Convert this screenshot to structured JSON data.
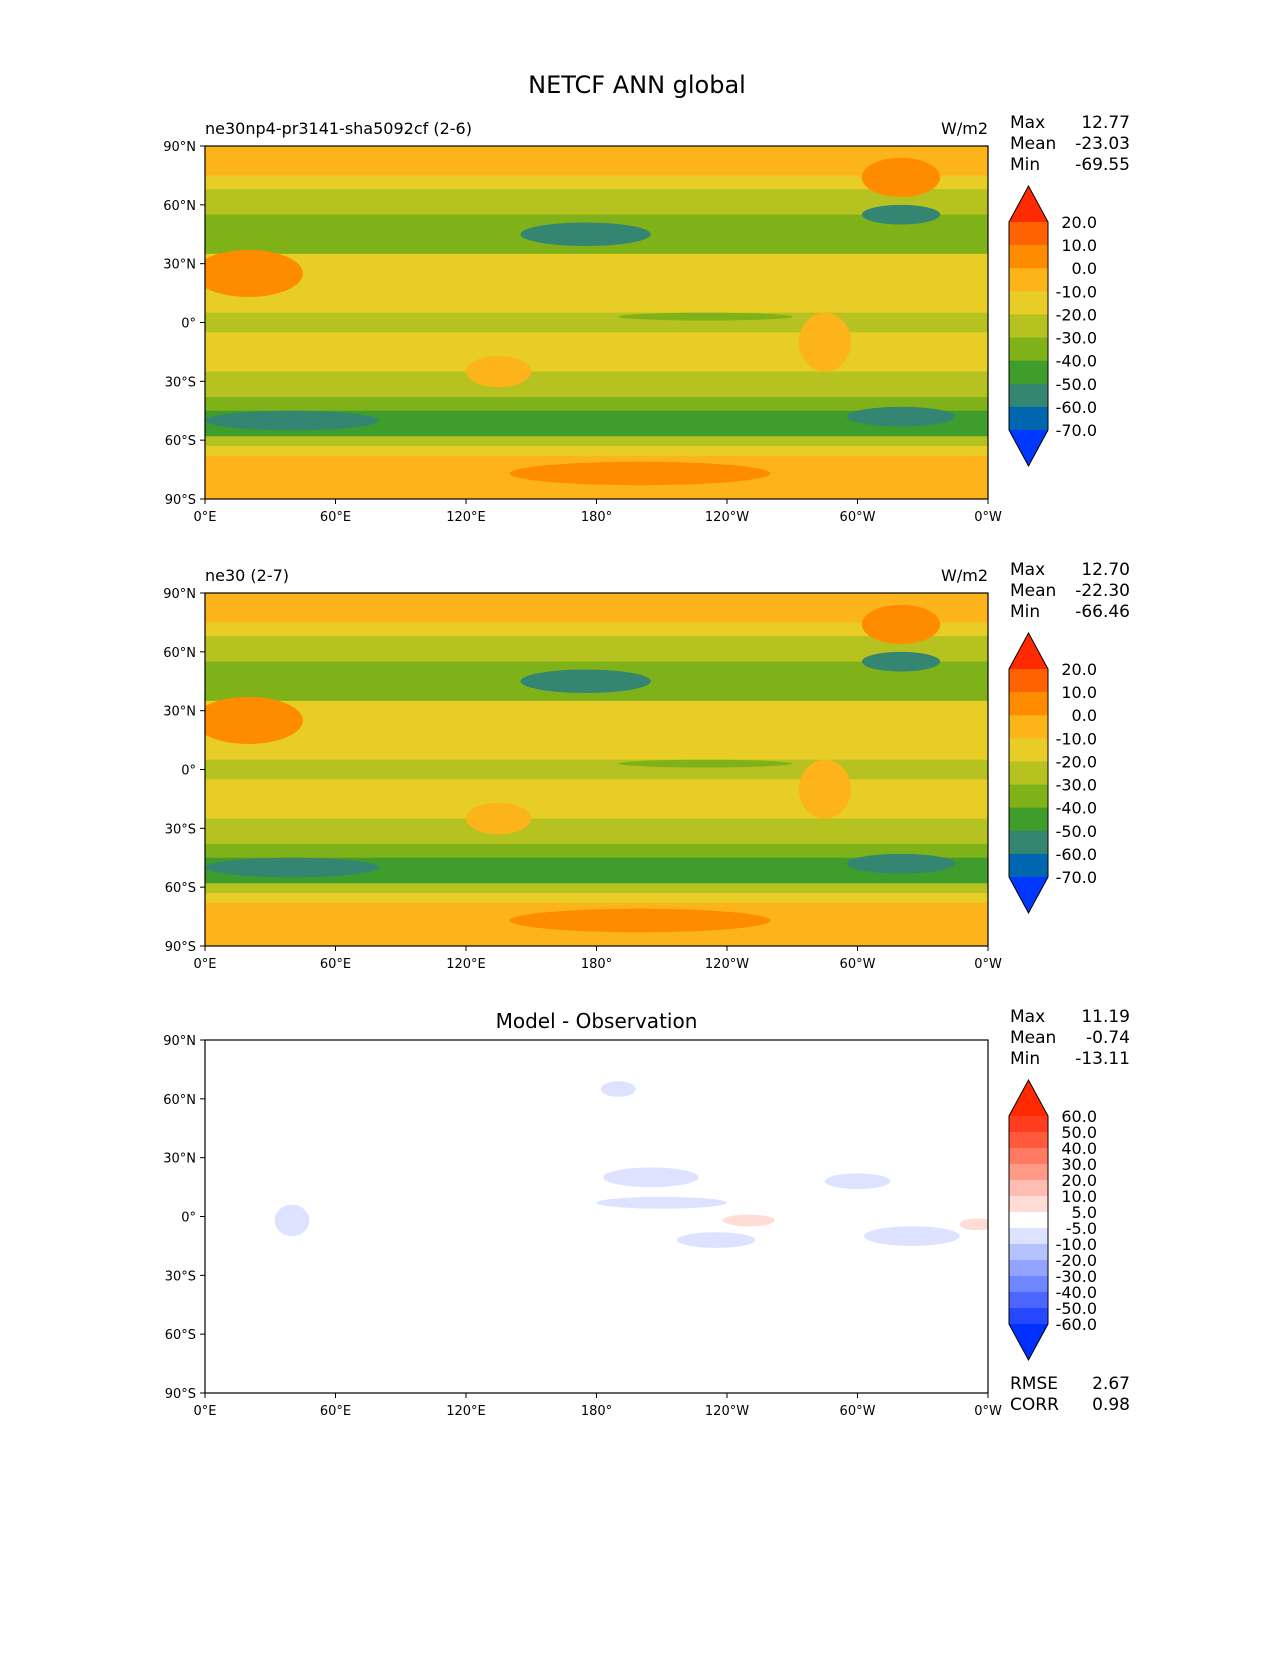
{
  "title": "NETCF ANN global",
  "chart_data": [
    {
      "type": "heatmap",
      "panel_title_left": "ne30np4-pr3141-sha5092cf (2-6)",
      "panel_title_center": "",
      "units": "W/m2",
      "stats": {
        "max_label": "Max",
        "max": "12.77",
        "mean_label": "Mean",
        "mean": "-23.03",
        "min_label": "Min",
        "min": "-69.55"
      },
      "xticks": [
        "0°E",
        "60°E",
        "120°E",
        "180°",
        "120°W",
        "60°W",
        "0°W"
      ],
      "yticks": [
        "90°N",
        "60°N",
        "30°N",
        "0°",
        "30°S",
        "60°S",
        "90°S"
      ],
      "xlim": [
        0,
        360
      ],
      "ylim": [
        -90,
        90
      ],
      "colorbar": {
        "ticks": [
          "20.0",
          "10.0",
          "0.0",
          "-10.0",
          "-20.0",
          "-30.0",
          "-40.0",
          "-50.0",
          "-60.0",
          "-70.0"
        ],
        "colors": [
          "#ff2a00",
          "#ff6200",
          "#ff8c00",
          "#fdb31a",
          "#e8cd27",
          "#b5c21f",
          "#7fb219",
          "#3f9d2b",
          "#348572",
          "#0066b0",
          "#0038ff"
        ]
      },
      "zonal_bands": [
        {
          "lat": [
            90,
            75
          ],
          "color_index": 3
        },
        {
          "lat": [
            75,
            68
          ],
          "color_index": 4
        },
        {
          "lat": [
            68,
            55
          ],
          "color_index": 5
        },
        {
          "lat": [
            55,
            35
          ],
          "color_index": 6
        },
        {
          "lat": [
            35,
            20
          ],
          "color_index": 4
        },
        {
          "lat": [
            20,
            5
          ],
          "color_index": 4
        },
        {
          "lat": [
            5,
            -5
          ],
          "color_index": 5
        },
        {
          "lat": [
            -5,
            -25
          ],
          "color_index": 4
        },
        {
          "lat": [
            -25,
            -38
          ],
          "color_index": 5
        },
        {
          "lat": [
            -38,
            -45
          ],
          "color_index": 6
        },
        {
          "lat": [
            -45,
            -58
          ],
          "color_index": 7
        },
        {
          "lat": [
            -58,
            -63
          ],
          "color_index": 5
        },
        {
          "lat": [
            -63,
            -68
          ],
          "color_index": 4
        },
        {
          "lat": [
            -68,
            -90
          ],
          "color_index": 3
        }
      ],
      "features": [
        {
          "lon": 175,
          "lat": 45,
          "rlon": 30,
          "rlat": 6,
          "color_index": 8
        },
        {
          "lon": 320,
          "lat": 55,
          "rlon": 18,
          "rlat": 5,
          "color_index": 8
        },
        {
          "lon": 40,
          "lat": -50,
          "rlon": 40,
          "rlat": 5,
          "color_index": 8
        },
        {
          "lon": 320,
          "lat": -48,
          "rlon": 25,
          "rlat": 5,
          "color_index": 8
        },
        {
          "lon": 20,
          "lat": 25,
          "rlon": 25,
          "rlat": 12,
          "color_index": 2
        },
        {
          "lon": 320,
          "lat": 74,
          "rlon": 18,
          "rlat": 10,
          "color_index": 2
        },
        {
          "lon": 135,
          "lat": -25,
          "rlon": 15,
          "rlat": 8,
          "color_index": 3
        },
        {
          "lon": 200,
          "lat": -77,
          "rlon": 60,
          "rlat": 6,
          "color_index": 2
        },
        {
          "lon": 285,
          "lat": -10,
          "rlon": 12,
          "rlat": 15,
          "color_index": 3
        },
        {
          "lon": 230,
          "lat": 3,
          "rlon": 40,
          "rlat": 2,
          "color_index": 6
        }
      ]
    },
    {
      "type": "heatmap",
      "panel_title_left": "ne30 (2-7)",
      "panel_title_center": "",
      "units": "W/m2",
      "stats": {
        "max_label": "Max",
        "max": "12.70",
        "mean_label": "Mean",
        "mean": "-22.30",
        "min_label": "Min",
        "min": "-66.46"
      },
      "xticks": [
        "0°E",
        "60°E",
        "120°E",
        "180°",
        "120°W",
        "60°W",
        "0°W"
      ],
      "yticks": [
        "90°N",
        "60°N",
        "30°N",
        "0°",
        "30°S",
        "60°S",
        "90°S"
      ],
      "xlim": [
        0,
        360
      ],
      "ylim": [
        -90,
        90
      ],
      "colorbar": {
        "ticks": [
          "20.0",
          "10.0",
          "0.0",
          "-10.0",
          "-20.0",
          "-30.0",
          "-40.0",
          "-50.0",
          "-60.0",
          "-70.0"
        ],
        "colors": [
          "#ff2a00",
          "#ff6200",
          "#ff8c00",
          "#fdb31a",
          "#e8cd27",
          "#b5c21f",
          "#7fb219",
          "#3f9d2b",
          "#348572",
          "#0066b0",
          "#0038ff"
        ]
      },
      "zonal_bands": [
        {
          "lat": [
            90,
            75
          ],
          "color_index": 3
        },
        {
          "lat": [
            75,
            68
          ],
          "color_index": 4
        },
        {
          "lat": [
            68,
            55
          ],
          "color_index": 5
        },
        {
          "lat": [
            55,
            35
          ],
          "color_index": 6
        },
        {
          "lat": [
            35,
            20
          ],
          "color_index": 4
        },
        {
          "lat": [
            20,
            5
          ],
          "color_index": 4
        },
        {
          "lat": [
            5,
            -5
          ],
          "color_index": 5
        },
        {
          "lat": [
            -5,
            -25
          ],
          "color_index": 4
        },
        {
          "lat": [
            -25,
            -38
          ],
          "color_index": 5
        },
        {
          "lat": [
            -38,
            -45
          ],
          "color_index": 6
        },
        {
          "lat": [
            -45,
            -58
          ],
          "color_index": 7
        },
        {
          "lat": [
            -58,
            -63
          ],
          "color_index": 5
        },
        {
          "lat": [
            -63,
            -68
          ],
          "color_index": 4
        },
        {
          "lat": [
            -68,
            -90
          ],
          "color_index": 3
        }
      ],
      "features": [
        {
          "lon": 175,
          "lat": 45,
          "rlon": 30,
          "rlat": 6,
          "color_index": 8
        },
        {
          "lon": 320,
          "lat": 55,
          "rlon": 18,
          "rlat": 5,
          "color_index": 8
        },
        {
          "lon": 40,
          "lat": -50,
          "rlon": 40,
          "rlat": 5,
          "color_index": 8
        },
        {
          "lon": 320,
          "lat": -48,
          "rlon": 25,
          "rlat": 5,
          "color_index": 8
        },
        {
          "lon": 20,
          "lat": 25,
          "rlon": 25,
          "rlat": 12,
          "color_index": 2
        },
        {
          "lon": 320,
          "lat": 74,
          "rlon": 18,
          "rlat": 10,
          "color_index": 2
        },
        {
          "lon": 135,
          "lat": -25,
          "rlon": 15,
          "rlat": 8,
          "color_index": 3
        },
        {
          "lon": 200,
          "lat": -77,
          "rlon": 60,
          "rlat": 6,
          "color_index": 2
        },
        {
          "lon": 285,
          "lat": -10,
          "rlon": 12,
          "rlat": 15,
          "color_index": 3
        },
        {
          "lon": 230,
          "lat": 3,
          "rlon": 40,
          "rlat": 2,
          "color_index": 6
        }
      ]
    },
    {
      "type": "heatmap",
      "panel_title_left": "",
      "panel_title_center": "Model - Observation",
      "units": "",
      "stats": {
        "max_label": "Max",
        "max": "11.19",
        "mean_label": "Mean",
        "mean": "-0.74",
        "min_label": "Min",
        "min": "-13.11"
      },
      "extra_stats": {
        "rmse_label": "RMSE",
        "rmse": "2.67",
        "corr_label": "CORR",
        "corr": "0.98"
      },
      "xticks": [
        "0°E",
        "60°E",
        "120°E",
        "180°",
        "120°W",
        "60°W",
        "0°W"
      ],
      "yticks": [
        "90°N",
        "60°N",
        "30°N",
        "0°",
        "30°S",
        "60°S",
        "90°S"
      ],
      "xlim": [
        0,
        360
      ],
      "ylim": [
        -90,
        90
      ],
      "colorbar": {
        "ticks": [
          "60.0",
          "50.0",
          "40.0",
          "30.0",
          "20.0",
          "10.0",
          "5.0",
          "-5.0",
          "-10.0",
          "-20.0",
          "-30.0",
          "-40.0",
          "-50.0",
          "-60.0"
        ],
        "colors": [
          "#ff2a00",
          "#ff3c1e",
          "#ff5a3c",
          "#ff7a60",
          "#ff9a86",
          "#ffbcb0",
          "#ffdcd6",
          "#ffffff",
          "#dce2ff",
          "#b6c2ff",
          "#92a4ff",
          "#6e86ff",
          "#4a66ff",
          "#2648ff",
          "#0030ff"
        ]
      },
      "zonal_bands": [
        {
          "lat": [
            90,
            -90
          ],
          "color_index": 7
        }
      ],
      "features": [
        {
          "lon": 205,
          "lat": 20,
          "rlon": 22,
          "rlat": 5,
          "color_index": 8
        },
        {
          "lon": 210,
          "lat": 7,
          "rlon": 30,
          "rlat": 3,
          "color_index": 8
        },
        {
          "lon": 235,
          "lat": -12,
          "rlon": 18,
          "rlat": 4,
          "color_index": 8
        },
        {
          "lon": 300,
          "lat": 18,
          "rlon": 15,
          "rlat": 4,
          "color_index": 8
        },
        {
          "lon": 325,
          "lat": -10,
          "rlon": 22,
          "rlat": 5,
          "color_index": 8
        },
        {
          "lon": 40,
          "lat": -2,
          "rlon": 8,
          "rlat": 8,
          "color_index": 8
        },
        {
          "lon": 250,
          "lat": -2,
          "rlon": 12,
          "rlat": 3,
          "color_index": 6
        },
        {
          "lon": 355,
          "lat": -4,
          "rlon": 8,
          "rlat": 3,
          "color_index": 6
        },
        {
          "lon": 190,
          "lat": 65,
          "rlon": 8,
          "rlat": 4,
          "color_index": 8
        }
      ]
    }
  ]
}
